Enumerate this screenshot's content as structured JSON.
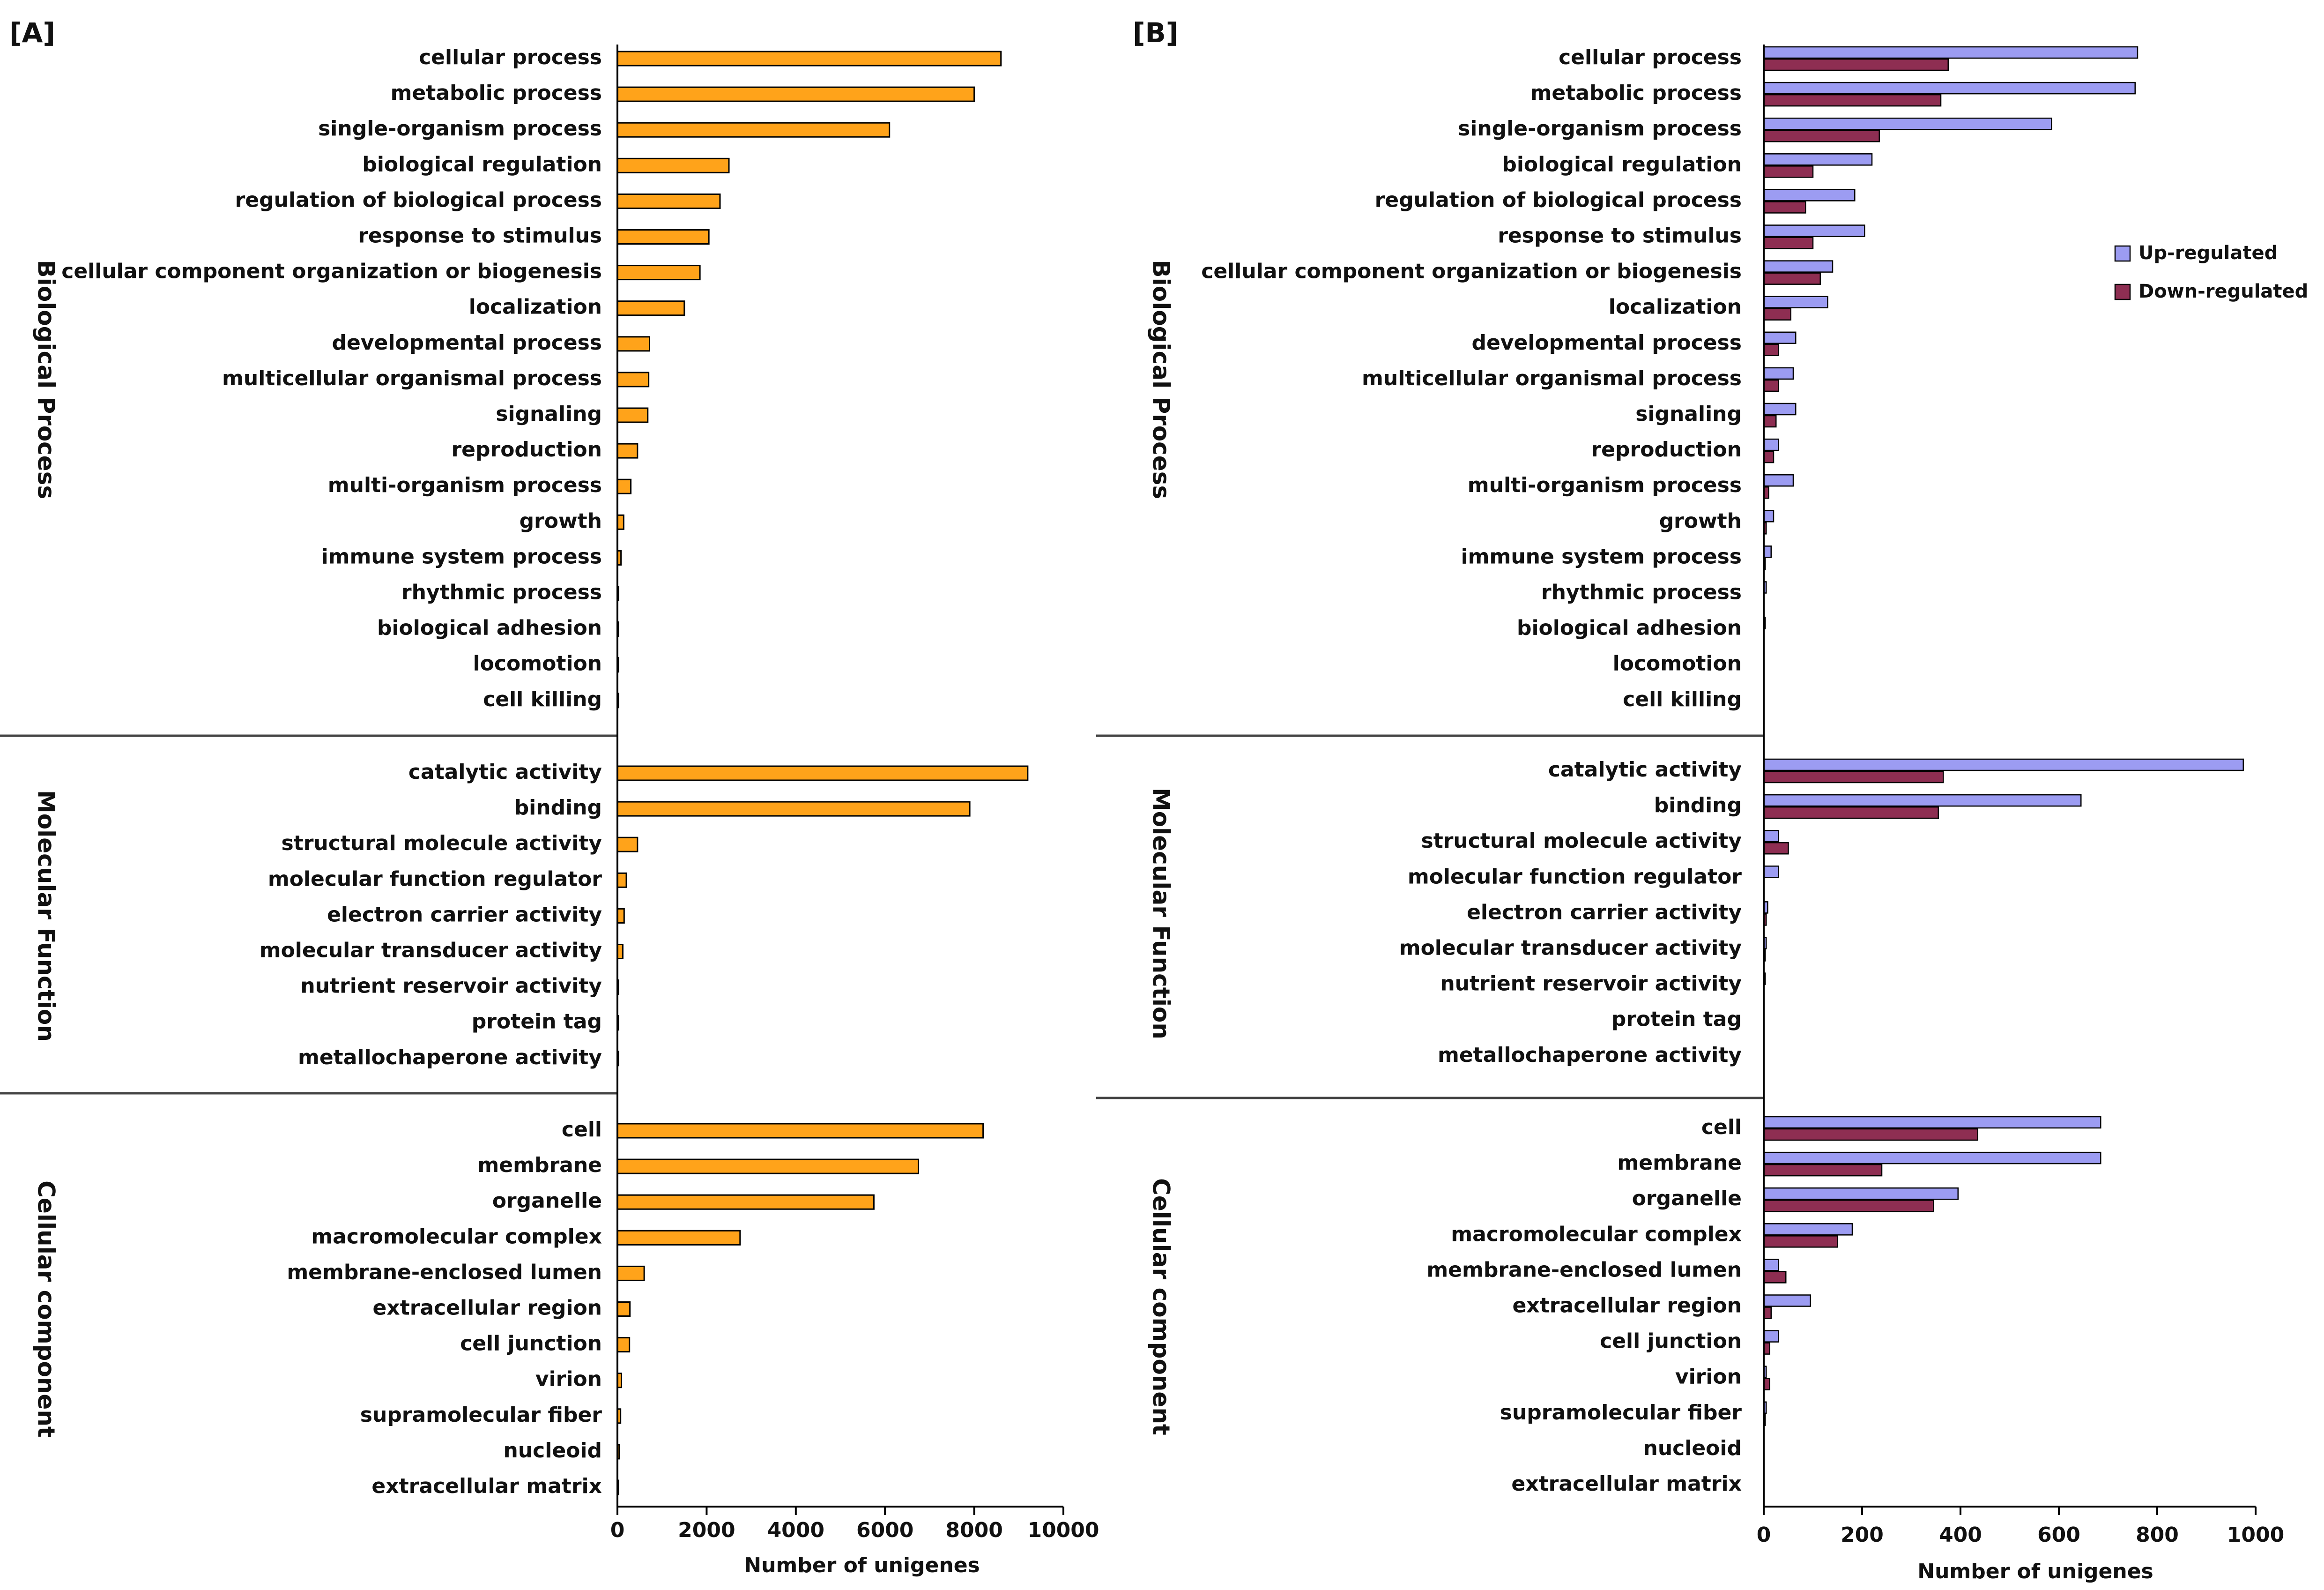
{
  "chart_data": [
    {
      "type": "bar",
      "orientation": "horizontal",
      "panel": "[A]",
      "xlabel": "Number of unigenes",
      "xlim": [
        0,
        10000
      ],
      "xticks": [
        "0",
        "2000",
        "4000",
        "6000",
        "8000",
        "10000"
      ],
      "sections": [
        {
          "name": "Biological Process",
          "categories": [
            "cellular process",
            "metabolic process",
            "single-organism process",
            "biological regulation",
            "regulation of biological process",
            "response to stimulus",
            "cellular component organization or biogenesis",
            "localization",
            "developmental process",
            "multicellular organismal process",
            "signaling",
            "reproduction",
            "multi-organism process",
            "growth",
            "immune system process",
            "rhythmic process",
            "biological adhesion",
            "locomotion",
            "cell killing"
          ],
          "values": [
            8600,
            8000,
            6100,
            2500,
            2300,
            2050,
            1850,
            1500,
            720,
            700,
            680,
            450,
            300,
            140,
            80,
            25,
            20,
            15,
            5
          ]
        },
        {
          "name": "Molecular Function",
          "categories": [
            "catalytic activity",
            "binding",
            "structural molecule activity",
            "molecular function regulator",
            "electron carrier activity",
            "molecular transducer activity",
            "nutrient reservoir activity",
            "protein tag",
            "metallochaperone activity"
          ],
          "values": [
            9200,
            7900,
            450,
            200,
            150,
            120,
            20,
            10,
            5
          ]
        },
        {
          "name": "Cellular component",
          "categories": [
            "cell",
            "membrane",
            "organelle",
            "macromolecular complex",
            "membrane-enclosed lumen",
            "extracellular region",
            "cell junction",
            "virion",
            "supramolecular fiber",
            "nucleoid",
            "extracellular matrix"
          ],
          "values": [
            8200,
            6750,
            5750,
            2750,
            600,
            280,
            270,
            90,
            70,
            40,
            10
          ]
        }
      ]
    },
    {
      "type": "bar",
      "orientation": "horizontal",
      "panel": "[B]",
      "xlabel": "Number of unigenes",
      "xlim": [
        0,
        1000
      ],
      "xticks": [
        "0",
        "200",
        "400",
        "600",
        "800",
        "1000"
      ],
      "legend": {
        "position": "right",
        "series_names": [
          "Up-regulated",
          "Down-regulated"
        ]
      },
      "sections": [
        {
          "name": "Biological Process",
          "categories": [
            "cellular process",
            "metabolic process",
            "single-organism process",
            "biological regulation",
            "regulation of biological process",
            "response to stimulus",
            "cellular component organization or biogenesis",
            "localization",
            "developmental process",
            "multicellular organismal process",
            "signaling",
            "reproduction",
            "multi-organism process",
            "growth",
            "immune system process",
            "rhythmic process",
            "biological adhesion",
            "locomotion",
            "cell killing"
          ],
          "series": [
            {
              "name": "Up-regulated",
              "values": [
                760,
                755,
                585,
                220,
                185,
                205,
                140,
                130,
                65,
                60,
                65,
                30,
                60,
                20,
                15,
                5,
                3,
                0,
                0
              ]
            },
            {
              "name": "Down-regulated",
              "values": [
                375,
                360,
                235,
                100,
                85,
                100,
                115,
                55,
                30,
                30,
                25,
                20,
                10,
                5,
                3,
                0,
                0,
                0,
                0
              ]
            }
          ]
        },
        {
          "name": "Molecular Function",
          "categories": [
            "catalytic activity",
            "binding",
            "structural molecule activity",
            "molecular function regulator",
            "electron carrier activity",
            "molecular transducer activity",
            "nutrient reservoir activity",
            "protein tag",
            "metallochaperone activity"
          ],
          "series": [
            {
              "name": "Up-regulated",
              "values": [
                975,
                645,
                30,
                30,
                8,
                5,
                3,
                0,
                0
              ]
            },
            {
              "name": "Down-regulated",
              "values": [
                365,
                355,
                50,
                0,
                5,
                3,
                0,
                0,
                0
              ]
            }
          ]
        },
        {
          "name": "Cellular component",
          "categories": [
            "cell",
            "membrane",
            "organelle",
            "macromolecular complex",
            "membrane-enclosed lumen",
            "extracellular region",
            "cell junction",
            "virion",
            "supramolecular fiber",
            "nucleoid",
            "extracellular matrix"
          ],
          "series": [
            {
              "name": "Up-regulated",
              "values": [
                685,
                685,
                395,
                180,
                30,
                95,
                30,
                5,
                5,
                0,
                0
              ]
            },
            {
              "name": "Down-regulated",
              "values": [
                435,
                240,
                345,
                150,
                45,
                15,
                12,
                12,
                3,
                0,
                0
              ]
            }
          ]
        }
      ]
    }
  ],
  "colors": {
    "panel_a_bar": "#FFA31A",
    "up_regulated": "#9C9CF2",
    "down_regulated": "#8E2E52",
    "bar_stroke": "#000000",
    "axis": "#000000",
    "divider": "#444444"
  }
}
